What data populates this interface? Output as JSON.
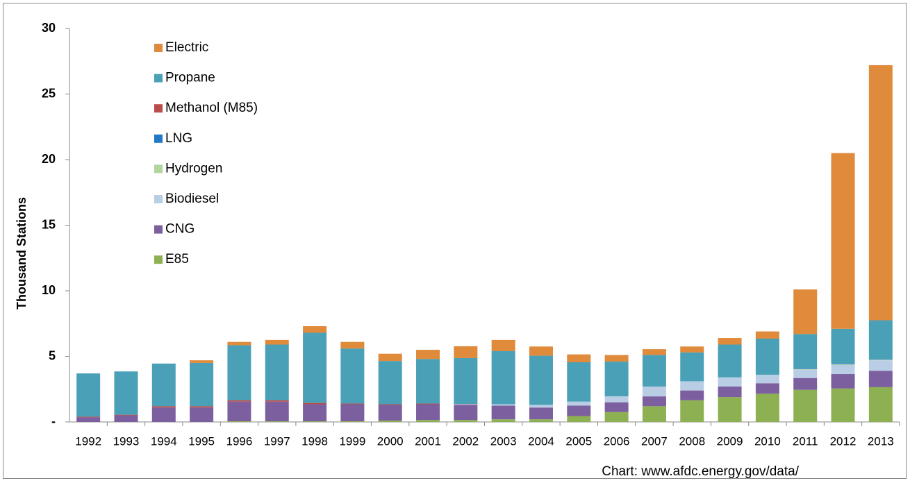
{
  "chart_data": {
    "type": "stacked_bar",
    "y_label": "Thousand Stations",
    "source": "Chart: www.afdc.energy.gov/data/",
    "categories": [
      "1992",
      "1993",
      "1994",
      "1995",
      "1996",
      "1997",
      "1998",
      "1999",
      "2000",
      "2001",
      "2002",
      "2003",
      "2004",
      "2005",
      "2006",
      "2007",
      "2008",
      "2009",
      "2010",
      "2011",
      "2012",
      "2013"
    ],
    "ylim": [
      0,
      30
    ],
    "yticks": [
      {
        "value": 0,
        "label": "-"
      },
      5,
      10,
      15,
      20,
      25,
      30
    ],
    "grid": false,
    "legend": "upper-left",
    "series": [
      {
        "name": "E85",
        "color": "#8db152",
        "values": [
          0,
          0,
          0,
          0,
          0.05,
          0.05,
          0.05,
          0.05,
          0.1,
          0.15,
          0.15,
          0.2,
          0.2,
          0.45,
          0.75,
          1.2,
          1.65,
          1.9,
          2.15,
          2.45,
          2.55,
          2.65
        ]
      },
      {
        "name": "CNG",
        "color": "#7c5f9f",
        "values": [
          0.35,
          0.5,
          1.1,
          1.1,
          1.5,
          1.5,
          1.3,
          1.3,
          1.2,
          1.2,
          1.15,
          1.05,
          0.9,
          0.8,
          0.75,
          0.75,
          0.75,
          0.8,
          0.8,
          0.9,
          1.1,
          1.25
        ]
      },
      {
        "name": "Biodiesel",
        "color": "#b9cde5",
        "values": [
          0,
          0,
          0,
          0,
          0,
          0,
          0,
          0,
          0,
          0,
          0.05,
          0.1,
          0.2,
          0.3,
          0.45,
          0.75,
          0.7,
          0.7,
          0.65,
          0.65,
          0.7,
          0.8
        ]
      },
      {
        "name": "Hydrogen",
        "color": "#b4d49d",
        "values": [
          0,
          0,
          0,
          0,
          0,
          0,
          0,
          0,
          0,
          0,
          0,
          0,
          0,
          0,
          0,
          0,
          0,
          0,
          0,
          0.05,
          0.05,
          0.05
        ]
      },
      {
        "name": "LNG",
        "color": "#1f78c8",
        "values": [
          0,
          0,
          0,
          0,
          0,
          0,
          0,
          0,
          0,
          0,
          0,
          0,
          0,
          0,
          0,
          0,
          0,
          0,
          0,
          0.05,
          0.05,
          0.05
        ]
      },
      {
        "name": "Methanol (M85)",
        "color": "#b94b48",
        "values": [
          0.05,
          0.05,
          0.1,
          0.1,
          0.1,
          0.1,
          0.1,
          0.05,
          0.05,
          0.05,
          0.02,
          0,
          0,
          0,
          0,
          0,
          0,
          0,
          0,
          0,
          0,
          0
        ]
      },
      {
        "name": "Propane",
        "color": "#4aa0b6",
        "values": [
          3.3,
          3.3,
          3.25,
          3.3,
          4.2,
          4.25,
          5.35,
          4.2,
          3.3,
          3.4,
          3.5,
          4.05,
          3.75,
          3.0,
          2.65,
          2.4,
          2.2,
          2.5,
          2.75,
          2.6,
          2.65,
          2.95
        ]
      },
      {
        "name": "Electric",
        "color": "#e08a3c",
        "values": [
          0,
          0,
          0,
          0.2,
          0.25,
          0.35,
          0.5,
          0.5,
          0.55,
          0.7,
          0.9,
          0.85,
          0.7,
          0.6,
          0.5,
          0.45,
          0.45,
          0.5,
          0.55,
          3.4,
          13.4,
          19.45
        ]
      }
    ]
  }
}
